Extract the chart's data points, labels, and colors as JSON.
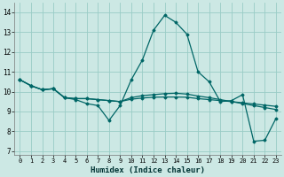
{
  "xlabel": "Humidex (Indice chaleur)",
  "bg_color": "#cce8e4",
  "grid_color": "#99ccc6",
  "line_color": "#006666",
  "xlim": [
    -0.5,
    23.5
  ],
  "ylim": [
    6.8,
    14.5
  ],
  "xticks": [
    0,
    1,
    2,
    3,
    4,
    5,
    6,
    7,
    8,
    9,
    10,
    11,
    12,
    13,
    14,
    15,
    16,
    17,
    18,
    19,
    20,
    21,
    22,
    23
  ],
  "yticks": [
    7,
    8,
    9,
    10,
    11,
    12,
    13,
    14
  ],
  "series1": [
    10.6,
    10.3,
    10.1,
    10.15,
    9.7,
    9.6,
    9.4,
    9.3,
    8.55,
    9.3,
    10.6,
    11.6,
    13.1,
    13.85,
    13.5,
    12.9,
    11.0,
    10.5,
    9.5,
    9.55,
    9.85,
    7.5,
    7.55,
    8.65
  ],
  "series2": [
    10.6,
    10.3,
    10.1,
    10.15,
    9.7,
    9.65,
    9.65,
    9.6,
    9.55,
    9.5,
    9.7,
    9.8,
    9.85,
    9.9,
    9.92,
    9.88,
    9.78,
    9.7,
    9.6,
    9.5,
    9.4,
    9.3,
    9.2,
    9.1
  ],
  "series3": [
    10.6,
    10.3,
    10.1,
    10.15,
    9.7,
    9.65,
    9.65,
    9.6,
    9.55,
    9.5,
    9.62,
    9.68,
    9.72,
    9.73,
    9.73,
    9.72,
    9.65,
    9.6,
    9.55,
    9.5,
    9.44,
    9.38,
    9.32,
    9.26
  ]
}
